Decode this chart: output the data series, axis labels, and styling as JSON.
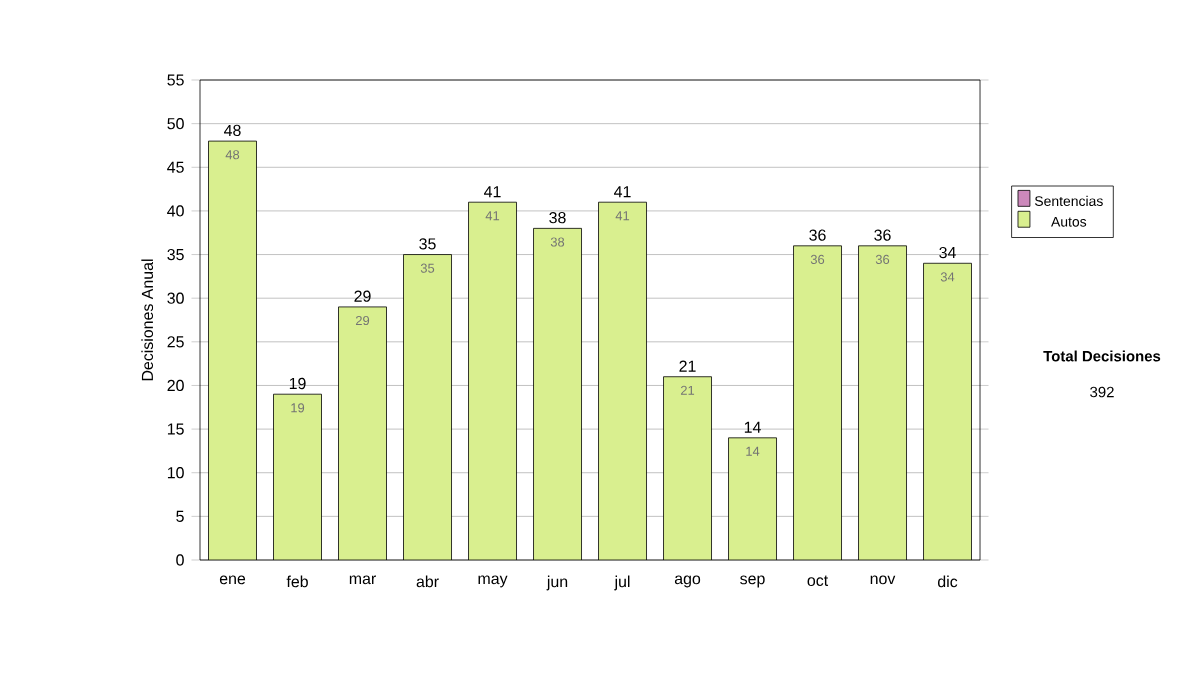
{
  "chart_data": {
    "type": "bar",
    "stacked": true,
    "ylabel": "Decisiones Anual",
    "categories": [
      "ene",
      "feb",
      "mar",
      "abr",
      "may",
      "jun",
      "jul",
      "ago",
      "sep",
      "oct",
      "nov",
      "dic"
    ],
    "series": [
      {
        "name": "Sentencias",
        "color": "#cc88bb",
        "values": [
          0,
          0,
          0,
          0,
          0,
          0,
          0,
          0,
          0,
          0,
          0,
          0
        ]
      },
      {
        "name": "Autos",
        "color": "#d9ef8f",
        "values": [
          48,
          19,
          29,
          35,
          41,
          38,
          41,
          21,
          14,
          36,
          36,
          34
        ],
        "value_labels": [
          "48",
          "19",
          "29",
          "35",
          "41",
          "38",
          "41",
          "21",
          "14",
          "36",
          "36",
          "34"
        ]
      }
    ],
    "totals": [
      "48",
      "19",
      "29",
      "35",
      "41",
      "38",
      "41",
      "21",
      "14",
      "36",
      "36",
      "34"
    ],
    "ylim": [
      0,
      55
    ],
    "yticks": [
      0,
      5,
      10,
      15,
      20,
      25,
      30,
      35,
      40,
      45,
      50,
      55
    ],
    "grid": "y",
    "legend": "right",
    "annotations": [
      "Total Decisiones",
      "392"
    ]
  }
}
